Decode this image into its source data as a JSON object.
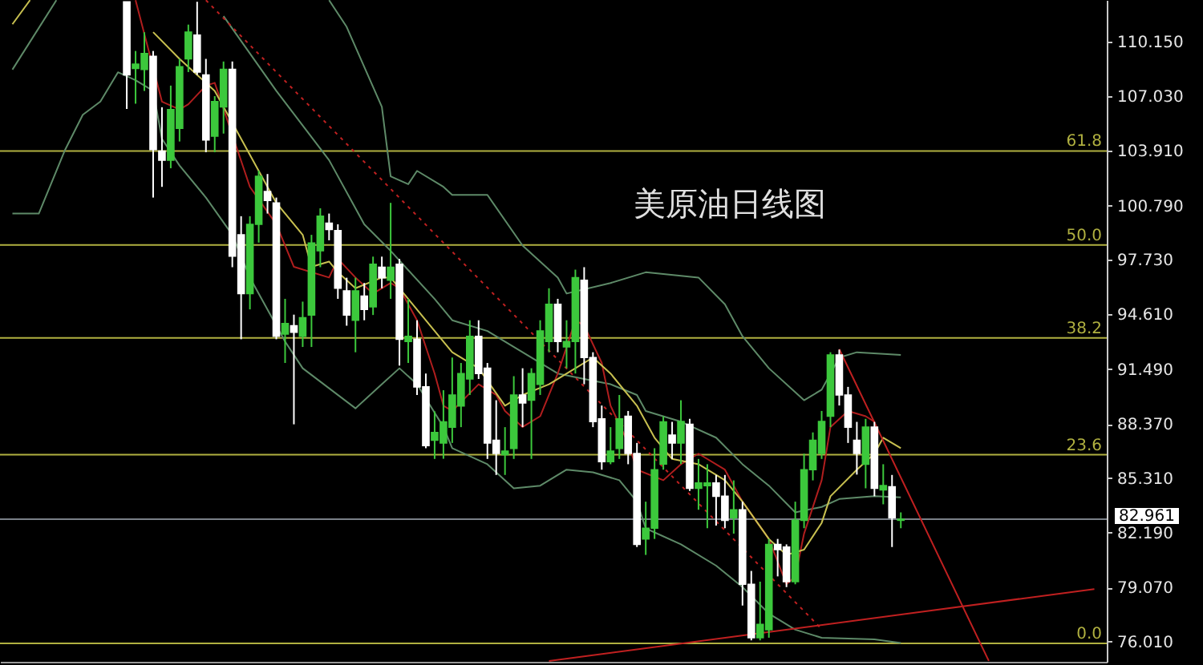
{
  "chart_data": {
    "type": "candlestick",
    "title": "美原油日线图",
    "categories": [
      null,
      null,
      null,
      null,
      null,
      null,
      null,
      null,
      null,
      null,
      null,
      null,
      null,
      null,
      null,
      null,
      null,
      null,
      null,
      null,
      null,
      null,
      null,
      null,
      null,
      null,
      null,
      null,
      null,
      null,
      null,
      null,
      null,
      null,
      null,
      null,
      null,
      null,
      null,
      null,
      null,
      null,
      null,
      null,
      null,
      null,
      null,
      null,
      null,
      null,
      null,
      null,
      null,
      null,
      null,
      null,
      null,
      null,
      null,
      null,
      null,
      null,
      null,
      null,
      null,
      null,
      null,
      null,
      null,
      null,
      null,
      null,
      null,
      null,
      null,
      null,
      null,
      null,
      null,
      null,
      null,
      null,
      null,
      null,
      null,
      null,
      null,
      null,
      null,
      null,
      null,
      null,
      null,
      null,
      null,
      null,
      null,
      null,
      null,
      null,
      null,
      null,
      null,
      null,
      null,
      null,
      null,
      null,
      null,
      null,
      null,
      null,
      null,
      null,
      null,
      null,
      null,
      null,
      null,
      null,
      null,
      null,
      null,
      null
    ],
    "ohlc": [
      null,
      null,
      null,
      null,
      null,
      null,
      null,
      null,
      null,
      null,
      null,
      null,
      null,
      [
        112.4,
        112.4,
        106.3,
        108.24
      ],
      [
        108.6,
        109.6,
        106.6,
        108.85
      ],
      [
        108.55,
        110.67,
        107.33,
        109.45
      ],
      [
        109.3,
        109.6,
        101.26,
        103.99
      ],
      [
        103.9,
        106.4,
        101.87,
        103.39
      ],
      [
        103.39,
        107.63,
        102.93,
        106.27
      ],
      [
        105.2,
        109.15,
        104.45,
        108.7
      ],
      [
        109.15,
        111.1,
        108.4,
        110.67
      ],
      [
        110.5,
        112.4,
        108.24,
        108.4
      ],
      [
        108.24,
        109.15,
        103.84,
        104.54
      ],
      [
        104.75,
        107.03,
        103.84,
        106.72
      ],
      [
        106.42,
        109.0,
        104.9,
        108.55
      ],
      [
        108.55,
        109.0,
        97.3,
        97.93
      ],
      [
        99.14,
        100.2,
        93.2,
        95.8
      ],
      [
        95.8,
        100.2,
        94.9,
        99.74
      ],
      [
        99.74,
        102.8,
        98.7,
        102.47
      ],
      [
        101.6,
        102.6,
        100.35,
        101.1
      ],
      [
        100.96,
        101.26,
        93.2,
        93.37
      ],
      [
        93.5,
        95.5,
        91.85,
        94.1
      ],
      [
        93.97,
        94.6,
        88.36,
        93.6
      ],
      [
        93.37,
        95.34,
        92.76,
        94.43
      ],
      [
        94.58,
        99.14,
        92.76,
        98.68
      ],
      [
        98.23,
        100.65,
        97.3,
        100.2
      ],
      [
        99.8,
        100.35,
        98.83,
        99.44
      ],
      [
        99.38,
        99.74,
        95.5,
        96.1
      ],
      [
        95.95,
        96.7,
        93.97,
        94.58
      ],
      [
        94.28,
        96.7,
        92.46,
        95.95
      ],
      [
        95.65,
        96.4,
        94.28,
        94.9
      ],
      [
        95.04,
        97.9,
        94.58,
        97.47
      ],
      [
        97.3,
        97.9,
        96.1,
        96.7
      ],
      [
        96.56,
        100.96,
        95.5,
        97.3
      ],
      [
        97.47,
        97.77,
        91.7,
        93.2
      ],
      [
        93.07,
        95.5,
        91.85,
        93.37
      ],
      [
        93.2,
        94.28,
        90.03,
        90.49
      ],
      [
        90.49,
        91.25,
        87.0,
        87.15
      ],
      [
        87.45,
        89.1,
        86.39,
        87.9
      ],
      [
        87.3,
        90.3,
        86.4,
        88.5
      ],
      [
        88.2,
        92.16,
        87.3,
        90.03
      ],
      [
        89.4,
        91.85,
        88.2,
        91.25
      ],
      [
        90.94,
        94.28,
        90.03,
        93.37
      ],
      [
        93.37,
        94.28,
        90.94,
        91.25
      ],
      [
        91.55,
        91.85,
        86.39,
        87.3
      ],
      [
        87.45,
        89.73,
        85.48,
        86.7
      ],
      [
        86.63,
        88.2,
        85.48,
        86.84
      ],
      [
        86.99,
        91.1,
        86.39,
        90.03
      ],
      [
        90.03,
        91.55,
        88.2,
        89.58
      ],
      [
        89.73,
        91.55,
        86.39,
        91.25
      ],
      [
        90.64,
        94.28,
        90.03,
        93.67
      ],
      [
        93.07,
        96.1,
        92.46,
        95.19
      ],
      [
        95.19,
        95.5,
        92.46,
        93.07
      ],
      [
        92.76,
        94.28,
        91.55,
        93.07
      ],
      [
        93.07,
        97.16,
        91.25,
        96.7
      ],
      [
        96.56,
        97.3,
        90.64,
        92.16
      ],
      [
        92.16,
        92.46,
        88.2,
        88.52
      ],
      [
        88.67,
        89.43,
        85.78,
        86.24
      ],
      [
        86.24,
        88.2,
        86.09,
        86.84
      ],
      [
        86.99,
        90.03,
        86.39,
        88.67
      ],
      [
        88.82,
        89.12,
        86.09,
        86.7
      ],
      [
        86.7,
        87.3,
        81.38,
        81.53
      ],
      [
        81.84,
        83.96,
        80.93,
        82.45
      ],
      [
        82.45,
        87.0,
        81.84,
        85.78
      ],
      [
        86.1,
        88.82,
        85.78,
        88.5
      ],
      [
        87.75,
        88.5,
        86.39,
        87.3
      ],
      [
        87.3,
        89.73,
        86.1,
        88.52
      ],
      [
        88.36,
        88.67,
        84.57,
        84.72
      ],
      [
        84.72,
        86.39,
        83.5,
        85.02
      ],
      [
        84.87,
        86.09,
        82.45,
        85.02
      ],
      [
        85.02,
        85.48,
        82.6,
        84.27
      ],
      [
        84.27,
        85.48,
        82.45,
        82.9
      ],
      [
        83.05,
        85.17,
        82.14,
        83.5
      ],
      [
        83.5,
        83.96,
        78.05,
        79.26
      ],
      [
        79.26,
        80.02,
        76.07,
        76.22
      ],
      [
        76.22,
        79.41,
        76.07,
        76.98
      ],
      [
        76.68,
        81.84,
        76.22,
        81.53
      ],
      [
        81.53,
        81.84,
        79.71,
        81.23
      ],
      [
        81.38,
        81.53,
        79.1,
        79.41
      ],
      [
        79.41,
        83.96,
        79.26,
        82.9
      ],
      [
        82.9,
        86.69,
        82.45,
        85.78
      ],
      [
        85.78,
        87.9,
        85.17,
        87.45
      ],
      [
        86.7,
        89.12,
        86.39,
        88.52
      ],
      [
        88.82,
        92.46,
        88.2,
        92.31
      ],
      [
        92.31,
        92.61,
        89.43,
        90.03
      ],
      [
        90.03,
        90.49,
        87.3,
        88.2
      ],
      [
        87.45,
        88.5,
        85.5,
        86.7
      ],
      [
        86.09,
        88.67,
        84.72,
        88.2
      ],
      [
        88.2,
        88.5,
        84.27,
        84.72
      ],
      [
        84.63,
        86.09,
        83.81,
        84.87
      ],
      [
        84.81,
        85.48,
        81.38,
        83.05
      ],
      [
        82.9,
        83.35,
        82.45,
        82.96
      ],
      null,
      null,
      null,
      null,
      null,
      null,
      null,
      null,
      null,
      null,
      null,
      null,
      null,
      null,
      null,
      null,
      null,
      null,
      null,
      null,
      null,
      null
    ],
    "colors": [
      null,
      null,
      null,
      null,
      null,
      null,
      null,
      null,
      null,
      null,
      null,
      null,
      null,
      "#ffffff",
      "#3cc83c",
      "#3cc83c",
      "#ffffff",
      "#ffffff",
      "#3cc83c",
      "#3cc83c",
      "#3cc83c",
      "#ffffff",
      "#ffffff",
      "#3cc83c",
      "#3cc83c",
      "#ffffff",
      "#ffffff",
      "#3cc83c",
      "#3cc83c",
      "#ffffff",
      "#ffffff",
      "#3cc83c",
      "#ffffff",
      "#3cc83c",
      "#3cc83c",
      "#3cc83c",
      "#ffffff",
      "#ffffff",
      "#ffffff",
      "#3cc83c",
      "#ffffff",
      "#3cc83c",
      "#ffffff",
      "#3cc83c",
      "#ffffff",
      "#3cc83c",
      "#ffffff",
      "#ffffff",
      "#3cc83c",
      "#3cc83c",
      "#3cc83c",
      "#3cc83c",
      "#3cc83c",
      "#ffffff",
      "#ffffff",
      "#ffffff",
      "#3cc83c",
      "#3cc83c",
      "#ffffff",
      "#3cc83c",
      "#3cc83c",
      "#3cc83c",
      "#ffffff",
      "#3cc83c",
      "#3cc83c",
      "#ffffff",
      "#ffffff",
      "#ffffff",
      "#3cc83c",
      "#3cc83c",
      "#ffffff",
      "#ffffff",
      "#3cc83c",
      "#3cc83c",
      "#3cc83c",
      "#ffffff",
      "#3cc83c",
      "#ffffff",
      "#3cc83c",
      "#3cc83c",
      "#ffffff",
      "#ffffff",
      "#3cc83c",
      "#ffffff",
      "#ffffff",
      "#3cc83c",
      "#3cc83c",
      "#ffffff",
      "#ffffff",
      "#3cc83c",
      "#3cc83c",
      "#3cc83c",
      "#3cc83c",
      "#3cc83c",
      "#ffffff",
      "#ffffff",
      "#ffffff",
      "#3cc83c",
      "#ffffff",
      "#3cc83c",
      "#ffffff",
      "#3cc83c",
      null,
      null,
      null,
      null,
      null,
      null,
      null,
      null,
      null,
      null,
      null,
      null,
      null,
      null,
      null,
      null,
      null,
      null,
      null,
      null,
      null,
      null
    ],
    "series": [
      {
        "type": "line",
        "color": "#5e8a68",
        "values": [
          108.54,
          null,
          null,
          null,
          null,
          112.49,
          null,
          null,
          null,
          null,
          null,
          null,
          null,
          null,
          null,
          null,
          null,
          null,
          null,
          null,
          null,
          null,
          null,
          null,
          null,
          null,
          null,
          null,
          null,
          null,
          null,
          null,
          null,
          null,
          null,
          null,
          null,
          null,
          null,
          null,
          null,
          null,
          null,
          null,
          null,
          null,
          null,
          null,
          null,
          null,
          null,
          null,
          null,
          null,
          null,
          null,
          null,
          null,
          null,
          null,
          null,
          null,
          null,
          null,
          null,
          null,
          null,
          null,
          null,
          null,
          null,
          null,
          null,
          null,
          null,
          null,
          null,
          null,
          null,
          null,
          null,
          null,
          null,
          null,
          null,
          null,
          null,
          null,
          null,
          null,
          null,
          null,
          null,
          null,
          null,
          null,
          null,
          null,
          null,
          null,
          null,
          null,
          null,
          null,
          null,
          null,
          null,
          null,
          null,
          null,
          null,
          null,
          null,
          null,
          null,
          null,
          null,
          null,
          null,
          null,
          null,
          null,
          null,
          null
        ]
      },
      {
        "type": "line",
        "color": "#5e8a68",
        "values": [
          null,
          null,
          null,
          null,
          null,
          null,
          null,
          null,
          null,
          null,
          null,
          null,
          null,
          null,
          null,
          null,
          null,
          null,
          null,
          null,
          null,
          null,
          null,
          null,
          null,
          null,
          null,
          null,
          null,
          null,
          null,
          null,
          null,
          null,
          null,
          null,
          112.49,
          null,
          110.97,
          null,
          null,
          null,
          106.42,
          102.47,
          null,
          102.02,
          102.78,
          null,
          null,
          101.87,
          101.41,
          null,
          null,
          null,
          101.41,
          null,
          null,
          null,
          98.53,
          null,
          null,
          null,
          96.71,
          95.8,
          null,
          null,
          null,
          null,
          96.4,
          null,
          null,
          null,
          97.01,
          null,
          null,
          null,
          null,
          null,
          96.71,
          null,
          null,
          95.19,
          null,
          93.37,
          null,
          null,
          91.55,
          null,
          null,
          null,
          89.73,
          null,
          90.33,
          null,
          92.16,
          null,
          92.46,
          null,
          null,
          null,
          null,
          92.31,
          null,
          null,
          null,
          null,
          null,
          null,
          null,
          null,
          null,
          null,
          null,
          null,
          null,
          null,
          null,
          null,
          null,
          null,
          null,
          null,
          null,
          null
        ]
      },
      {
        "type": "line",
        "color": "#5e8a68",
        "values": [
          null,
          null,
          null,
          null,
          null,
          null,
          null,
          null,
          null,
          null,
          null,
          null,
          null,
          null,
          null,
          null,
          null,
          null,
          null,
          null,
          null,
          null,
          null,
          null,
          111.58,
          null,
          null,
          null,
          null,
          null,
          107.33,
          null,
          null,
          null,
          null,
          null,
          103.39,
          null,
          null,
          null,
          99.74,
          null,
          null,
          98.23,
          null,
          null,
          null,
          null,
          95.49,
          null,
          94.28,
          null,
          null,
          null,
          93.67,
          null,
          null,
          null,
          92.46,
          null,
          null,
          null,
          91.25,
          null,
          null,
          90.94,
          null,
          null,
          90.64,
          null,
          null,
          90.03,
          89.12,
          null,
          null,
          null,
          88.51,
          null,
          null,
          null,
          87.6,
          null,
          null,
          86.09,
          null,
          null,
          84.87,
          null,
          null,
          83.35,
          null,
          null,
          83.66,
          null,
          84.11,
          null,
          null,
          null,
          84.27,
          null,
          null,
          84.2,
          null,
          null,
          null,
          null,
          null,
          null,
          null,
          null,
          null,
          null,
          null,
          null,
          null,
          null,
          null,
          null,
          null,
          null,
          null,
          null,
          null,
          null
        ]
      },
      {
        "type": "line",
        "color": "#5e8a68",
        "values": [
          100.35,
          null,
          null,
          100.35,
          null,
          null,
          103.99,
          null,
          105.97,
          null,
          106.72,
          null,
          108.39,
          null,
          107.94,
          null,
          107.33,
          104.6,
          null,
          103.08,
          null,
          null,
          101.26,
          null,
          null,
          99.14,
          null,
          96.71,
          null,
          null,
          null,
          93.07,
          null,
          91.55,
          null,
          null,
          null,
          null,
          null,
          89.27,
          null,
          null,
          90.64,
          null,
          91.55,
          null,
          90.64,
          null,
          null,
          88.21,
          87.0,
          null,
          null,
          null,
          86.09,
          null,
          null,
          84.72,
          null,
          null,
          84.87,
          null,
          null,
          85.78,
          null,
          null,
          85.63,
          null,
          null,
          85.18,
          null,
          83.96,
          82.44,
          null,
          null,
          null,
          81.53,
          null,
          null,
          null,
          80.32,
          null,
          null,
          79.1,
          null,
          null,
          77.59,
          null,
          null,
          76.68,
          null,
          null,
          76.22,
          null,
          null,
          null,
          null,
          null,
          76.13,
          null,
          null,
          75.92,
          null,
          null,
          null,
          null,
          null,
          null,
          null,
          null,
          null,
          null,
          null,
          null,
          null,
          null,
          null,
          null,
          null,
          null,
          null,
          null,
          null,
          null
        ]
      },
      {
        "type": "line",
        "color": "#b01e1e",
        "values": [
          null,
          null,
          null,
          null,
          null,
          null,
          null,
          null,
          null,
          null,
          null,
          null,
          null,
          null,
          112.49,
          null,
          null,
          106.72,
          null,
          106.27,
          106.57,
          null,
          107.63,
          107.79,
          null,
          null,
          null,
          101.87,
          null,
          null,
          99.74,
          null,
          97.32,
          null,
          null,
          null,
          96.71,
          97.77,
          null,
          96.71,
          null,
          95.8,
          null,
          96.4,
          96.1,
          null,
          94.28,
          null,
          91.25,
          89.42,
          89.12,
          null,
          null,
          90.64,
          null,
          90.03,
          89.12,
          null,
          88.21,
          null,
          88.82,
          null,
          91.25,
          92.76,
          94.28,
          93.98,
          null,
          91.85,
          89.42,
          null,
          87.3,
          85.78,
          null,
          null,
          85.18,
          null,
          86.09,
          null,
          86.69,
          null,
          null,
          85.78,
          null,
          83.96,
          null,
          null,
          81.84,
          null,
          79.26,
          79.71,
          82.14,
          null,
          85.18,
          88.21,
          null,
          89.12,
          null,
          88.82,
          88.51,
          null,
          null,
          null,
          null,
          null,
          null,
          null,
          null,
          null,
          null,
          null,
          null,
          null,
          null,
          null,
          null,
          null,
          null,
          null,
          null,
          null,
          null,
          null,
          null,
          null
        ]
      },
      {
        "type": "line",
        "color": "#c8c050",
        "values": [
          111.12,
          null,
          112.49,
          null,
          null,
          null,
          null,
          null,
          null,
          null,
          null,
          null,
          null,
          null,
          null,
          null,
          null,
          null,
          null,
          null,
          null,
          null,
          null,
          null,
          null,
          null,
          null,
          null,
          null,
          null,
          null,
          null,
          null,
          null,
          null,
          null,
          null,
          null,
          null,
          null,
          null,
          null,
          null,
          null,
          null,
          null,
          null,
          null,
          null,
          null,
          null,
          null,
          null,
          null,
          null,
          null,
          null,
          null,
          null,
          null,
          null,
          null,
          null,
          null,
          null,
          null,
          null,
          null,
          null,
          null,
          null,
          null,
          null,
          null,
          null,
          null,
          null,
          null,
          null,
          null,
          null,
          null,
          null,
          null,
          null,
          null,
          null,
          null,
          null,
          null,
          null,
          null,
          null,
          null,
          null,
          null,
          null,
          null,
          null,
          null,
          null,
          null,
          null,
          null,
          null,
          null,
          null,
          null,
          null,
          null,
          null,
          null,
          null,
          null,
          null,
          null,
          null,
          null,
          null,
          null,
          null,
          null,
          null,
          null
        ]
      },
      {
        "type": "line",
        "color": "#c8c050",
        "values": [
          null,
          null,
          null,
          null,
          null,
          null,
          null,
          null,
          null,
          null,
          null,
          null,
          null,
          null,
          null,
          null,
          110.67,
          null,
          null,
          109.15,
          null,
          108.24,
          null,
          107.33,
          null,
          105.51,
          null,
          null,
          102.78,
          null,
          100.96,
          null,
          null,
          99.14,
          97.32,
          null,
          97.62,
          97.01,
          null,
          96.1,
          null,
          null,
          96.71,
          96.71,
          null,
          95.49,
          null,
          null,
          null,
          93.07,
          92.46,
          null,
          null,
          91.55,
          null,
          null,
          89.42,
          null,
          90.03,
          null,
          null,
          90.64,
          null,
          null,
          91.55,
          null,
          92.16,
          null,
          91.25,
          null,
          null,
          89.42,
          null,
          87.6,
          null,
          86.39,
          null,
          null,
          86.09,
          null,
          null,
          85.18,
          null,
          83.96,
          null,
          null,
          81.84,
          null,
          80.93,
          null,
          81.23,
          null,
          82.75,
          84.27,
          null,
          null,
          85.78,
          null,
          86.69,
          87.6,
          null,
          87.0,
          null,
          null,
          null,
          null,
          null,
          null,
          null,
          null,
          null,
          null,
          null,
          null,
          null,
          null,
          null,
          null,
          null,
          null,
          null,
          null,
          null,
          null
        ]
      },
      {
        "type": "line",
        "color": "#c02020",
        "line_style": "dotted",
        "values": [
          null,
          null,
          null,
          null,
          null,
          null,
          null,
          null,
          null,
          null,
          null,
          null,
          null,
          null,
          null,
          null,
          null,
          null,
          null,
          null,
          null,
          null,
          112.49,
          null,
          null,
          null,
          null,
          null,
          null,
          null,
          null,
          null,
          null,
          null,
          null,
          null,
          null,
          null,
          null,
          null,
          null,
          null,
          null,
          null,
          null,
          null,
          null,
          null,
          null,
          null,
          null,
          null,
          null,
          null,
          null,
          null,
          null,
          null,
          null,
          null,
          null,
          null,
          null,
          null,
          null,
          null,
          null,
          null,
          null,
          null,
          null,
          null,
          null,
          null,
          null,
          null,
          null,
          null,
          null,
          null,
          null,
          null,
          null,
          null,
          null,
          null,
          null,
          null,
          null,
          null,
          null,
          null,
          76.71,
          null,
          null,
          null,
          null,
          null,
          null,
          null,
          null,
          null,
          null,
          null,
          null,
          null,
          null,
          null,
          null,
          null,
          null,
          null,
          null,
          null,
          null,
          null,
          null,
          null,
          null,
          null,
          null,
          null,
          null,
          null
        ]
      },
      {
        "type": "line",
        "color": "#c02020",
        "values": [
          null,
          null,
          null,
          null,
          null,
          null,
          null,
          null,
          null,
          null,
          null,
          null,
          null,
          null,
          null,
          null,
          null,
          null,
          null,
          null,
          null,
          null,
          null,
          null,
          null,
          null,
          null,
          null,
          null,
          null,
          null,
          null,
          null,
          null,
          null,
          null,
          null,
          null,
          null,
          null,
          null,
          null,
          null,
          null,
          null,
          null,
          null,
          null,
          null,
          null,
          null,
          null,
          null,
          null,
          null,
          null,
          null,
          null,
          null,
          null,
          null,
          null,
          null,
          null,
          null,
          null,
          null,
          null,
          null,
          null,
          null,
          null,
          null,
          null,
          null,
          null,
          null,
          null,
          null,
          null,
          null,
          null,
          null,
          null,
          null,
          null,
          null,
          null,
          null,
          null,
          null,
          null,
          null,
          null,
          92.64,
          null,
          null,
          null,
          null,
          null,
          null,
          null,
          null,
          null,
          null,
          null,
          null,
          null,
          null,
          null,
          null,
          74.9,
          null,
          null,
          null,
          null,
          null,
          null,
          null,
          null,
          null,
          null,
          null,
          null
        ]
      },
      {
        "type": "line",
        "color": "#c02020",
        "values": [
          null,
          null,
          null,
          null,
          null,
          null,
          null,
          null,
          null,
          null,
          null,
          null,
          null,
          null,
          null,
          null,
          null,
          null,
          null,
          null,
          null,
          null,
          null,
          null,
          null,
          null,
          null,
          null,
          null,
          null,
          null,
          null,
          null,
          null,
          null,
          null,
          null,
          null,
          null,
          null,
          null,
          null,
          null,
          null,
          null,
          null,
          null,
          null,
          null,
          null,
          null,
          null,
          null,
          null,
          null,
          null,
          null,
          null,
          null,
          null,
          null,
          74.9,
          null,
          null,
          null,
          null,
          null,
          null,
          null,
          null,
          null,
          null,
          null,
          null,
          null,
          null,
          null,
          null,
          null,
          null,
          null,
          null,
          null,
          null,
          null,
          null,
          null,
          null,
          null,
          null,
          null,
          null,
          null,
          null,
          null,
          null,
          null,
          null,
          null,
          null,
          null,
          null,
          null,
          null,
          null,
          null,
          null,
          null,
          null,
          null,
          null,
          null,
          null,
          null,
          null,
          null,
          null,
          null,
          null,
          null,
          null,
          null,
          null,
          78.99
        ]
      }
    ],
    "ref_lines": [
      {
        "axis": "y",
        "value": 103.91,
        "color": "#b0b040"
      },
      {
        "axis": "y",
        "value": 98.56,
        "color": "#b0b040"
      },
      {
        "axis": "y",
        "value": 93.28,
        "color": "#b0b040"
      },
      {
        "axis": "y",
        "value": 86.63,
        "color": "#b0b040"
      },
      {
        "axis": "y",
        "value": 75.9,
        "color": "#b0b040"
      },
      {
        "axis": "y",
        "value": 82.961,
        "label": "82.961",
        "color": "#7a8088"
      }
    ],
    "annotations": [
      {
        "text": "61.8",
        "y": 103.91
      },
      {
        "text": "50.0",
        "y": 98.56
      },
      {
        "text": "38.2",
        "y": 93.28
      },
      {
        "text": "23.6",
        "y": 86.63
      },
      {
        "text": "0.0",
        "y": 75.9
      }
    ],
    "ylim": [
      74.85,
      112.5
    ],
    "yticks": [
      {
        "value": 110.15,
        "label": "110.150"
      },
      {
        "value": 107.03,
        "label": "107.030"
      },
      {
        "value": 103.91,
        "label": "103.910"
      },
      {
        "value": 100.79,
        "label": "100.790"
      },
      {
        "value": 97.73,
        "label": "97.730"
      },
      {
        "value": 94.61,
        "label": "94.610"
      },
      {
        "value": 91.49,
        "label": "91.490"
      },
      {
        "value": 88.37,
        "label": "88.370"
      },
      {
        "value": 85.31,
        "label": "85.310"
      },
      {
        "value": 82.19,
        "label": "82.190"
      },
      {
        "value": 79.07,
        "label": "79.070"
      },
      {
        "value": 76.01,
        "label": "76.010"
      }
    ],
    "tick_labels": "y",
    "grid": false
  }
}
